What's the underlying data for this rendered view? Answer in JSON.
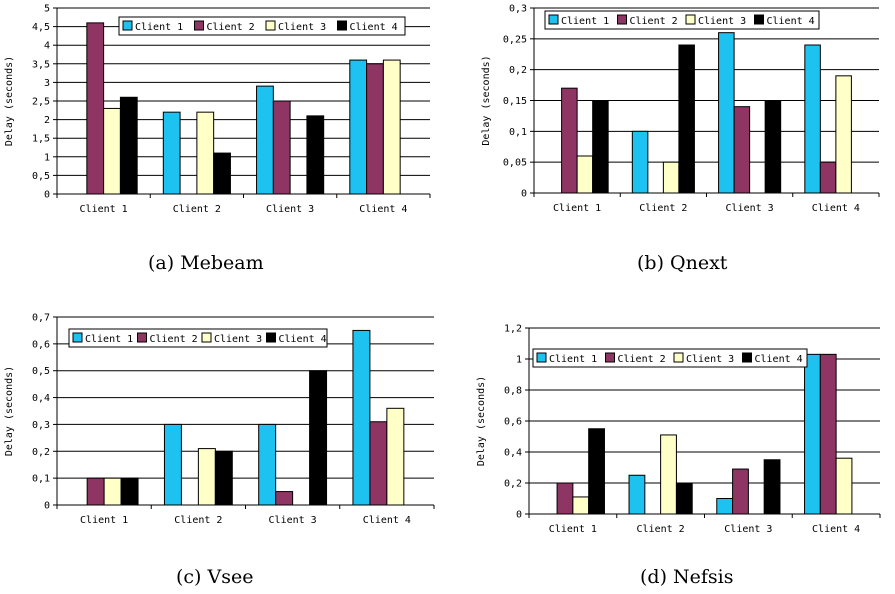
{
  "chart_data": [
    {
      "type": "bar",
      "caption": "(a) Mebeam",
      "ylabel": "Delay (seconds)",
      "categories": [
        "Client 1",
        "Client 2",
        "Client 3",
        "Client 4"
      ],
      "yticks": [
        "0",
        "0,5",
        "1",
        "1,5",
        "2",
        "2,5",
        "3",
        "3,5",
        "4",
        "4,5",
        "5"
      ],
      "ylim": [
        0,
        5
      ],
      "legend": "top-right",
      "series": [
        {
          "name": "Client 1",
          "color": "#1ec2f0",
          "values": [
            0,
            2.2,
            2.9,
            3.6
          ]
        },
        {
          "name": "Client 2",
          "color": "#8e3563",
          "values": [
            4.6,
            0,
            2.5,
            3.5
          ]
        },
        {
          "name": "Client 3",
          "color": "#ffffc8",
          "values": [
            2.3,
            2.2,
            0,
            3.6
          ]
        },
        {
          "name": "Client 4",
          "color": "#000000",
          "values": [
            2.6,
            1.1,
            2.1,
            0
          ]
        }
      ]
    },
    {
      "type": "bar",
      "caption": "(b) Qnext",
      "ylabel": "Delay (seconds)",
      "categories": [
        "Client 1",
        "Client 2",
        "Client 3",
        "Client 4"
      ],
      "yticks": [
        "0",
        "0,05",
        "0,1",
        "0,15",
        "0,2",
        "0,25",
        "0,3"
      ],
      "ylim": [
        0,
        0.3
      ],
      "legend": "top",
      "series": [
        {
          "name": "Client 1",
          "color": "#1ec2f0",
          "values": [
            0,
            0.1,
            0.26,
            0.24
          ]
        },
        {
          "name": "Client 2",
          "color": "#8e3563",
          "values": [
            0.17,
            0,
            0.14,
            0.05
          ]
        },
        {
          "name": "Client 3",
          "color": "#ffffc8",
          "values": [
            0.06,
            0.05,
            0,
            0.19
          ]
        },
        {
          "name": "Client 4",
          "color": "#000000",
          "values": [
            0.15,
            0.24,
            0.15,
            0
          ]
        }
      ]
    },
    {
      "type": "bar",
      "caption": "(c) Vsee",
      "ylabel": "Delay (seconds)",
      "categories": [
        "Client 1",
        "Client 2",
        "Client 3",
        "Client 4"
      ],
      "yticks": [
        "0",
        "0,1",
        "0,2",
        "0,3",
        "0,4",
        "0,5",
        "0,6",
        "0,7"
      ],
      "ylim": [
        0,
        0.7
      ],
      "legend": "top",
      "series": [
        {
          "name": "Client 1",
          "color": "#1ec2f0",
          "values": [
            0,
            0.3,
            0.3,
            0.65
          ]
        },
        {
          "name": "Client 2",
          "color": "#8e3563",
          "values": [
            0.1,
            0,
            0.05,
            0.31
          ]
        },
        {
          "name": "Client 3",
          "color": "#ffffc8",
          "values": [
            0.1,
            0.21,
            0,
            0.36
          ]
        },
        {
          "name": "Client 4",
          "color": "#000000",
          "values": [
            0.1,
            0.2,
            0.5,
            0
          ]
        }
      ]
    },
    {
      "type": "bar",
      "caption": "(d) Nefsis",
      "ylabel": "Delay (seconds)",
      "categories": [
        "Client 1",
        "Client 2",
        "Client 3",
        "Client 4"
      ],
      "yticks": [
        "0",
        "0,2",
        "0,4",
        "0,6",
        "0,8",
        "1",
        "1,2"
      ],
      "ylim": [
        0,
        1.2
      ],
      "legend": "top",
      "series": [
        {
          "name": "Client 1",
          "color": "#1ec2f0",
          "values": [
            0,
            0.25,
            0.1,
            1.03
          ]
        },
        {
          "name": "Client 2",
          "color": "#8e3563",
          "values": [
            0.2,
            0,
            0.29,
            1.03
          ]
        },
        {
          "name": "Client 3",
          "color": "#ffffc8",
          "values": [
            0.11,
            0.51,
            0,
            0.36
          ]
        },
        {
          "name": "Client 4",
          "color": "#000000",
          "values": [
            0.55,
            0.2,
            0.35,
            0
          ]
        }
      ]
    }
  ]
}
